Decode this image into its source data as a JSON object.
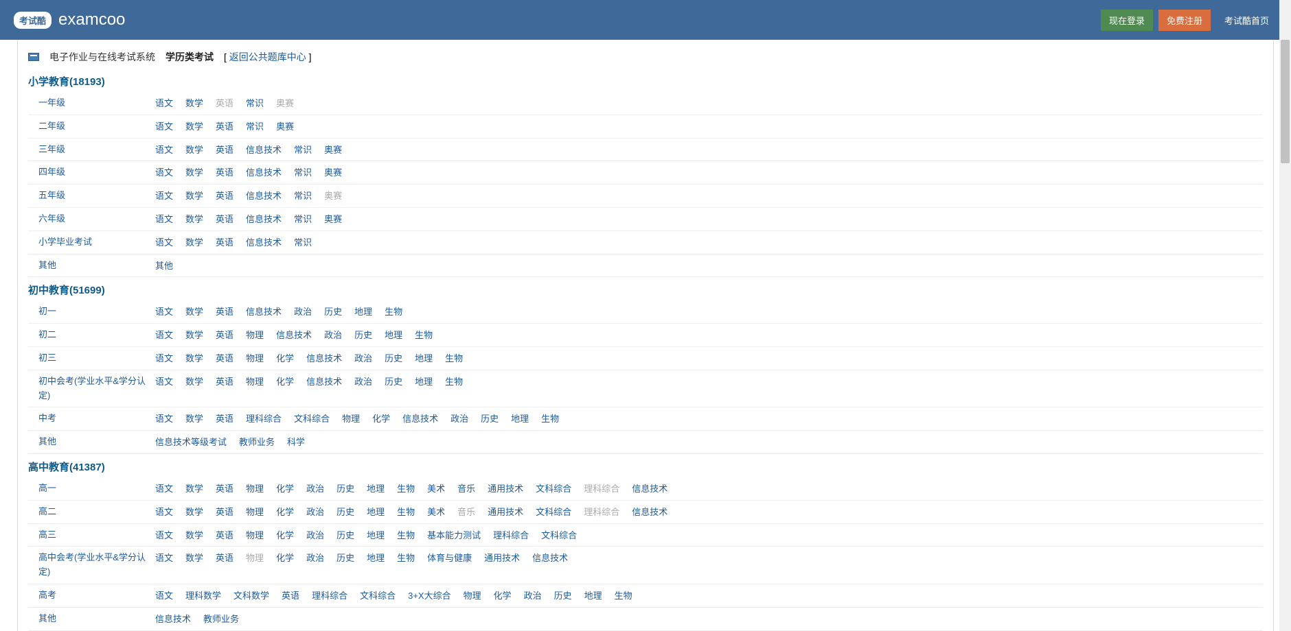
{
  "header": {
    "logo_badge": "考试酷",
    "logo_text": "examcoo",
    "login_btn": "现在登录",
    "register_btn": "免费注册",
    "home_btn": "考试酷首页"
  },
  "breadcrumb": {
    "system": "电子作业与在线考试系统",
    "category": "学历类考试",
    "back_prefix": "[ ",
    "back_link": "返回公共题库中心",
    "back_suffix": " ]"
  },
  "sections": [
    {
      "title": "小学教育(18193)",
      "rows": [
        {
          "label": "一年级",
          "subjects": [
            {
              "t": "语文"
            },
            {
              "t": "数学"
            },
            {
              "t": "英语",
              "d": true
            },
            {
              "t": "常识"
            },
            {
              "t": "奥赛",
              "d": true
            }
          ]
        },
        {
          "label": "二年级",
          "subjects": [
            {
              "t": "语文"
            },
            {
              "t": "数学"
            },
            {
              "t": "英语"
            },
            {
              "t": "常识"
            },
            {
              "t": "奥赛"
            }
          ]
        },
        {
          "label": "三年级",
          "subjects": [
            {
              "t": "语文"
            },
            {
              "t": "数学"
            },
            {
              "t": "英语"
            },
            {
              "t": "信息技术"
            },
            {
              "t": "常识"
            },
            {
              "t": "奥赛"
            }
          ]
        },
        {
          "label": "四年级",
          "subjects": [
            {
              "t": "语文"
            },
            {
              "t": "数学"
            },
            {
              "t": "英语"
            },
            {
              "t": "信息技术"
            },
            {
              "t": "常识"
            },
            {
              "t": "奥赛"
            }
          ]
        },
        {
          "label": "五年级",
          "subjects": [
            {
              "t": "语文"
            },
            {
              "t": "数学"
            },
            {
              "t": "英语"
            },
            {
              "t": "信息技术"
            },
            {
              "t": "常识"
            },
            {
              "t": "奥赛",
              "d": true
            }
          ]
        },
        {
          "label": "六年级",
          "subjects": [
            {
              "t": "语文"
            },
            {
              "t": "数学"
            },
            {
              "t": "英语"
            },
            {
              "t": "信息技术"
            },
            {
              "t": "常识"
            },
            {
              "t": "奥赛"
            }
          ]
        },
        {
          "label": "小学毕业考试",
          "subjects": [
            {
              "t": "语文"
            },
            {
              "t": "数学"
            },
            {
              "t": "英语"
            },
            {
              "t": "信息技术"
            },
            {
              "t": "常识"
            }
          ]
        },
        {
          "label": "其他",
          "subjects": [
            {
              "t": "其他"
            }
          ]
        }
      ]
    },
    {
      "title": "初中教育(51699)",
      "rows": [
        {
          "label": "初一",
          "subjects": [
            {
              "t": "语文"
            },
            {
              "t": "数学"
            },
            {
              "t": "英语"
            },
            {
              "t": "信息技术"
            },
            {
              "t": "政治"
            },
            {
              "t": "历史"
            },
            {
              "t": "地理"
            },
            {
              "t": "生物"
            }
          ]
        },
        {
          "label": "初二",
          "subjects": [
            {
              "t": "语文"
            },
            {
              "t": "数学"
            },
            {
              "t": "英语"
            },
            {
              "t": "物理"
            },
            {
              "t": "信息技术"
            },
            {
              "t": "政治"
            },
            {
              "t": "历史"
            },
            {
              "t": "地理"
            },
            {
              "t": "生物"
            }
          ]
        },
        {
          "label": "初三",
          "subjects": [
            {
              "t": "语文"
            },
            {
              "t": "数学"
            },
            {
              "t": "英语"
            },
            {
              "t": "物理"
            },
            {
              "t": "化学"
            },
            {
              "t": "信息技术"
            },
            {
              "t": "政治"
            },
            {
              "t": "历史"
            },
            {
              "t": "地理"
            },
            {
              "t": "生物"
            }
          ]
        },
        {
          "label": "初中会考(学业水平&学分认定)",
          "subjects": [
            {
              "t": "语文"
            },
            {
              "t": "数学"
            },
            {
              "t": "英语"
            },
            {
              "t": "物理"
            },
            {
              "t": "化学"
            },
            {
              "t": "信息技术"
            },
            {
              "t": "政治"
            },
            {
              "t": "历史"
            },
            {
              "t": "地理"
            },
            {
              "t": "生物"
            }
          ]
        },
        {
          "label": "中考",
          "subjects": [
            {
              "t": "语文"
            },
            {
              "t": "数学"
            },
            {
              "t": "英语"
            },
            {
              "t": "理科综合"
            },
            {
              "t": "文科综合"
            },
            {
              "t": "物理"
            },
            {
              "t": "化学"
            },
            {
              "t": "信息技术"
            },
            {
              "t": "政治"
            },
            {
              "t": "历史"
            },
            {
              "t": "地理"
            },
            {
              "t": "生物"
            }
          ]
        },
        {
          "label": "其他",
          "subjects": [
            {
              "t": "信息技术等级考试"
            },
            {
              "t": "教师业务"
            },
            {
              "t": "科学"
            }
          ]
        }
      ]
    },
    {
      "title": "高中教育(41387)",
      "rows": [
        {
          "label": "高一",
          "subjects": [
            {
              "t": "语文"
            },
            {
              "t": "数学"
            },
            {
              "t": "英语"
            },
            {
              "t": "物理"
            },
            {
              "t": "化学"
            },
            {
              "t": "政治"
            },
            {
              "t": "历史"
            },
            {
              "t": "地理"
            },
            {
              "t": "生物"
            },
            {
              "t": "美术"
            },
            {
              "t": "音乐"
            },
            {
              "t": "通用技术"
            },
            {
              "t": "文科综合"
            },
            {
              "t": "理科综合",
              "d": true
            },
            {
              "t": "信息技术"
            }
          ]
        },
        {
          "label": "高二",
          "subjects": [
            {
              "t": "语文"
            },
            {
              "t": "数学"
            },
            {
              "t": "英语"
            },
            {
              "t": "物理"
            },
            {
              "t": "化学"
            },
            {
              "t": "政治"
            },
            {
              "t": "历史"
            },
            {
              "t": "地理"
            },
            {
              "t": "生物"
            },
            {
              "t": "美术"
            },
            {
              "t": "音乐",
              "d": true
            },
            {
              "t": "通用技术"
            },
            {
              "t": "文科综合"
            },
            {
              "t": "理科综合",
              "d": true
            },
            {
              "t": "信息技术"
            }
          ]
        },
        {
          "label": "高三",
          "subjects": [
            {
              "t": "语文"
            },
            {
              "t": "数学"
            },
            {
              "t": "英语"
            },
            {
              "t": "物理"
            },
            {
              "t": "化学"
            },
            {
              "t": "政治"
            },
            {
              "t": "历史"
            },
            {
              "t": "地理"
            },
            {
              "t": "生物"
            },
            {
              "t": "基本能力测试"
            },
            {
              "t": "理科综合"
            },
            {
              "t": "文科综合"
            }
          ]
        },
        {
          "label": "高中会考(学业水平&学分认定)",
          "subjects": [
            {
              "t": "语文"
            },
            {
              "t": "数学"
            },
            {
              "t": "英语"
            },
            {
              "t": "物理",
              "d": true
            },
            {
              "t": "化学"
            },
            {
              "t": "政治"
            },
            {
              "t": "历史"
            },
            {
              "t": "地理"
            },
            {
              "t": "生物"
            },
            {
              "t": "体育与健康"
            },
            {
              "t": "通用技术"
            },
            {
              "t": "信息技术"
            }
          ]
        },
        {
          "label": "高考",
          "subjects": [
            {
              "t": "语文"
            },
            {
              "t": "理科数学"
            },
            {
              "t": "文科数学"
            },
            {
              "t": "英语"
            },
            {
              "t": "理科综合"
            },
            {
              "t": "文科综合"
            },
            {
              "t": "3+X大综合"
            },
            {
              "t": "物理"
            },
            {
              "t": "化学"
            },
            {
              "t": "政治"
            },
            {
              "t": "历史"
            },
            {
              "t": "地理"
            },
            {
              "t": "生物"
            }
          ]
        },
        {
          "label": "其他",
          "subjects": [
            {
              "t": "信息技术"
            },
            {
              "t": "教师业务"
            }
          ]
        }
      ]
    }
  ],
  "colors": {
    "header_bg": "#3f6998",
    "link": "#1e5a9e",
    "title": "#0e5a8a",
    "login": "#4f8b51",
    "register": "#da6d3e",
    "disabled": "#aaa"
  }
}
